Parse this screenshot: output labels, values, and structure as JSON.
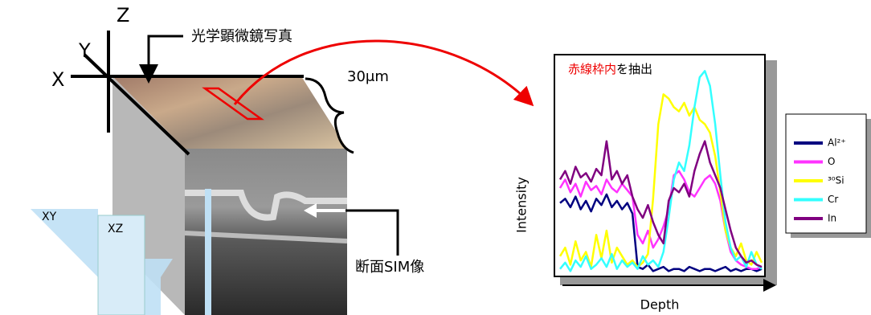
{
  "labels": {
    "z_axis": "Z",
    "y_axis": "Y",
    "x_axis": "X",
    "optical_photo": "光学顕微鏡写真",
    "scale": "30μm",
    "xy_plane": "XY",
    "xz_plane": "XZ",
    "sim_image": "断面SIM像"
  },
  "chart_data": {
    "type": "line",
    "annotation": [
      "赤線枠内",
      "を抽出"
    ],
    "y_label": "Intensity",
    "x_label": "Depth",
    "ylim": [
      0,
      100
    ],
    "series": [
      {
        "name": "Al²⁺",
        "color": "#000080",
        "values": [
          33,
          35,
          31,
          36,
          30,
          34,
          29,
          35,
          32,
          37,
          31,
          34,
          30,
          33,
          28,
          3,
          2,
          4,
          1,
          2,
          3,
          1,
          2,
          2,
          1,
          3,
          2,
          1,
          2,
          2,
          1,
          2,
          3,
          1,
          2,
          1,
          2,
          2,
          1,
          2
        ]
      },
      {
        "name": "O",
        "color": "#ff33ff",
        "values": [
          40,
          44,
          38,
          42,
          36,
          43,
          39,
          41,
          37,
          44,
          40,
          38,
          42,
          39,
          36,
          18,
          14,
          20,
          12,
          16,
          22,
          30,
          46,
          48,
          44,
          38,
          36,
          40,
          44,
          46,
          42,
          34,
          20,
          10,
          6,
          4,
          3,
          2,
          2,
          3
        ]
      },
      {
        "name": "³⁰Si",
        "color": "#ffff00",
        "values": [
          8,
          12,
          4,
          15,
          6,
          10,
          3,
          18,
          7,
          20,
          5,
          12,
          8,
          4,
          6,
          3,
          5,
          9,
          35,
          70,
          84,
          82,
          78,
          76,
          80,
          74,
          78,
          72,
          70,
          66,
          55,
          38,
          20,
          12,
          8,
          14,
          6,
          4,
          10,
          5
        ]
      },
      {
        "name": "Cr",
        "color": "#33ffff",
        "values": [
          2,
          5,
          1,
          6,
          3,
          8,
          2,
          4,
          7,
          3,
          9,
          2,
          6,
          3,
          5,
          2,
          8,
          4,
          6,
          3,
          10,
          26,
          44,
          52,
          48,
          60,
          78,
          92,
          95,
          88,
          70,
          46,
          24,
          12,
          6,
          8,
          3,
          10,
          4,
          2
        ]
      },
      {
        "name": "In",
        "color": "#800080",
        "values": [
          44,
          48,
          42,
          50,
          45,
          47,
          43,
          49,
          46,
          62,
          44,
          48,
          42,
          46,
          36,
          30,
          26,
          32,
          24,
          18,
          14,
          34,
          40,
          38,
          42,
          36,
          48,
          56,
          62,
          52,
          46,
          40,
          30,
          20,
          12,
          8,
          5,
          6,
          4,
          3
        ]
      }
    ]
  }
}
